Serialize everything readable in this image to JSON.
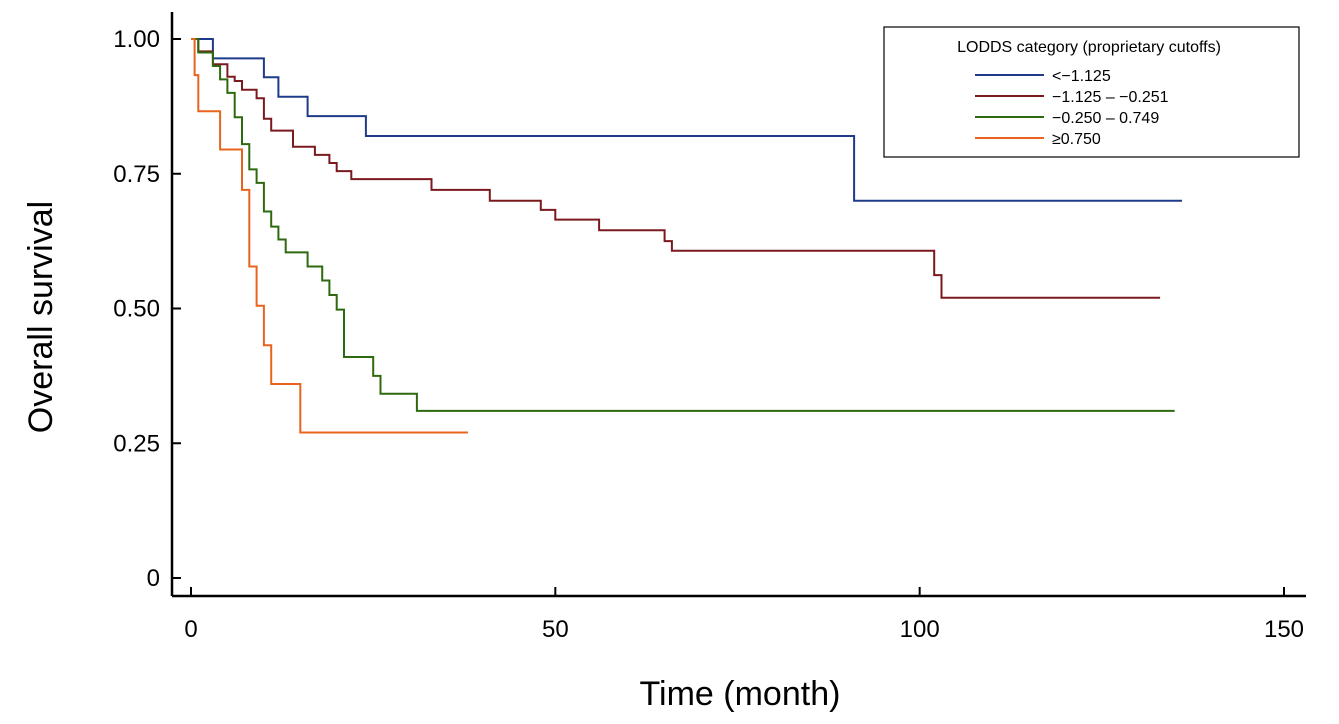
{
  "chart_data": {
    "type": "line",
    "subtype": "kaplan-meier step",
    "title": "",
    "xlabel": "Time (month)",
    "ylabel": "Overall survival",
    "xlim": [
      0,
      150
    ],
    "ylim": [
      0,
      1.0
    ],
    "xticks": [
      0,
      50,
      100,
      150
    ],
    "xtick_labels": [
      "0",
      "50",
      "100",
      "150"
    ],
    "yticks": [
      0,
      0.25,
      0.5,
      0.75,
      1.0
    ],
    "ytick_labels": [
      "0",
      "0.25",
      "0.50",
      "0.75",
      "1.00"
    ],
    "grid": false,
    "legend": {
      "title": "LODDS category (proprietary cutoffs)",
      "position": "top-right"
    },
    "series": [
      {
        "name": "<−1.125",
        "color": "#1f3a8a",
        "x": [
          0,
          3,
          3,
          10,
          10,
          12,
          12,
          16,
          16,
          24,
          24,
          91,
          91,
          136
        ],
        "y": [
          1.0,
          1.0,
          0.964,
          0.964,
          0.929,
          0.929,
          0.893,
          0.893,
          0.857,
          0.857,
          0.82,
          0.82,
          0.7,
          0.7
        ]
      },
      {
        "name": "−1.125 – −0.251",
        "color": "#7a1a1f",
        "x": [
          0,
          1,
          1,
          3,
          3,
          5,
          5,
          6,
          6,
          7,
          7,
          9,
          9,
          10,
          10,
          11,
          11,
          14,
          14,
          17,
          17,
          19,
          19,
          20,
          20,
          22,
          22,
          26,
          26,
          33,
          33,
          41,
          41,
          48,
          48,
          50,
          50,
          56,
          56,
          65,
          65,
          66,
          66,
          102,
          102,
          103,
          103,
          133
        ],
        "y": [
          1.0,
          1.0,
          0.977,
          0.977,
          0.953,
          0.953,
          0.93,
          0.93,
          0.922,
          0.922,
          0.906,
          0.906,
          0.89,
          0.89,
          0.852,
          0.852,
          0.83,
          0.83,
          0.8,
          0.8,
          0.785,
          0.785,
          0.77,
          0.77,
          0.755,
          0.755,
          0.74,
          0.74,
          0.74,
          0.74,
          0.72,
          0.72,
          0.7,
          0.7,
          0.683,
          0.683,
          0.665,
          0.665,
          0.645,
          0.645,
          0.625,
          0.625,
          0.607,
          0.607,
          0.562,
          0.562,
          0.52,
          0.52
        ]
      },
      {
        "name": "−0.250 – 0.749",
        "color": "#2d6a0f",
        "x": [
          0,
          1,
          1,
          3,
          3,
          4,
          4,
          5,
          5,
          6,
          6,
          7,
          7,
          8,
          8,
          9,
          9,
          10,
          10,
          11,
          11,
          12,
          12,
          13,
          13,
          16,
          16,
          18,
          18,
          19,
          19,
          20,
          20,
          21,
          21,
          25,
          25,
          26,
          26,
          31,
          31,
          135
        ],
        "y": [
          1.0,
          1.0,
          0.975,
          0.975,
          0.95,
          0.95,
          0.925,
          0.925,
          0.9,
          0.9,
          0.855,
          0.855,
          0.805,
          0.805,
          0.758,
          0.758,
          0.733,
          0.733,
          0.68,
          0.68,
          0.652,
          0.652,
          0.628,
          0.628,
          0.604,
          0.604,
          0.578,
          0.578,
          0.552,
          0.552,
          0.525,
          0.525,
          0.498,
          0.498,
          0.41,
          0.41,
          0.375,
          0.375,
          0.342,
          0.342,
          0.31,
          0.31
        ]
      },
      {
        "name": "≥0.750",
        "color": "#e8641e",
        "x": [
          0,
          0.5,
          0.5,
          1,
          1,
          4,
          4,
          7,
          7,
          8,
          8,
          9,
          9,
          10,
          10,
          11,
          11,
          12,
          12,
          15,
          15,
          38
        ],
        "y": [
          1.0,
          1.0,
          0.933,
          0.933,
          0.866,
          0.866,
          0.795,
          0.795,
          0.72,
          0.72,
          0.578,
          0.578,
          0.505,
          0.505,
          0.432,
          0.432,
          0.36,
          0.36,
          0.36,
          0.36,
          0.27,
          0.27
        ]
      }
    ]
  }
}
